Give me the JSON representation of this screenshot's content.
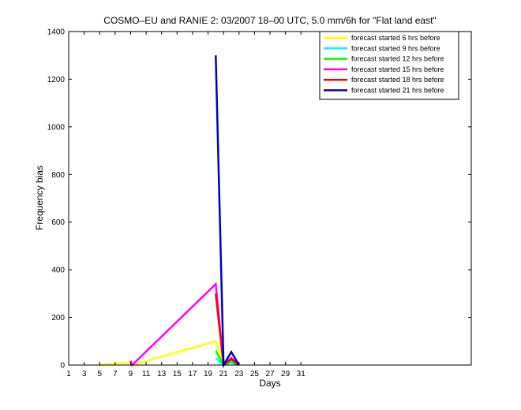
{
  "chart_data": {
    "type": "line",
    "title": "COSMO–EU and RANIE 2: 03/2007 18–00 UTC, 5.0 mm/6h for \"Flat land east\"",
    "xlabel": "Days",
    "ylabel": "Frequency bias",
    "xlim": [
      1,
      53
    ],
    "ylim": [
      0,
      1400
    ],
    "xticks": [
      1,
      3,
      5,
      7,
      9,
      11,
      13,
      15,
      17,
      19,
      21,
      23,
      25,
      27,
      29,
      31
    ],
    "yticks": [
      0,
      200,
      400,
      600,
      800,
      1000,
      1200,
      1400
    ],
    "legend_position": "top-right",
    "series": [
      {
        "name": "forecast started 6 hrs before",
        "color": "#ffff00",
        "points": [
          [
            4.9,
            0
          ],
          [
            5.1,
            0
          ],
          [
            9,
            12
          ],
          [
            9.2,
            0
          ],
          [
            20,
            100
          ],
          [
            21,
            0
          ],
          [
            22,
            20
          ],
          [
            23,
            0
          ]
        ]
      },
      {
        "name": "forecast started 9 hrs before",
        "color": "#00ffff",
        "points": [
          [
            20,
            30
          ],
          [
            21,
            0
          ],
          [
            22,
            10
          ],
          [
            23,
            0
          ]
        ]
      },
      {
        "name": "forecast started 12 hrs before",
        "color": "#00ff00",
        "points": [
          [
            20,
            60
          ],
          [
            21,
            0
          ],
          [
            22,
            15
          ],
          [
            23,
            0
          ]
        ]
      },
      {
        "name": "forecast started 15 hrs before",
        "color": "#ff00ff",
        "points": [
          [
            9,
            18
          ],
          [
            9.2,
            0
          ],
          [
            20,
            340
          ],
          [
            21,
            0
          ],
          [
            22,
            30
          ],
          [
            23,
            0
          ]
        ]
      },
      {
        "name": "forecast started 18 hrs before",
        "color": "#ff0000",
        "points": [
          [
            20,
            300
          ],
          [
            21,
            0
          ],
          [
            22,
            25
          ],
          [
            23,
            0
          ]
        ]
      },
      {
        "name": "forecast started 21 hrs before",
        "color": "#0000cc",
        "points": [
          [
            20,
            1300
          ],
          [
            21,
            0
          ],
          [
            22,
            55
          ],
          [
            23,
            0
          ]
        ]
      }
    ]
  }
}
